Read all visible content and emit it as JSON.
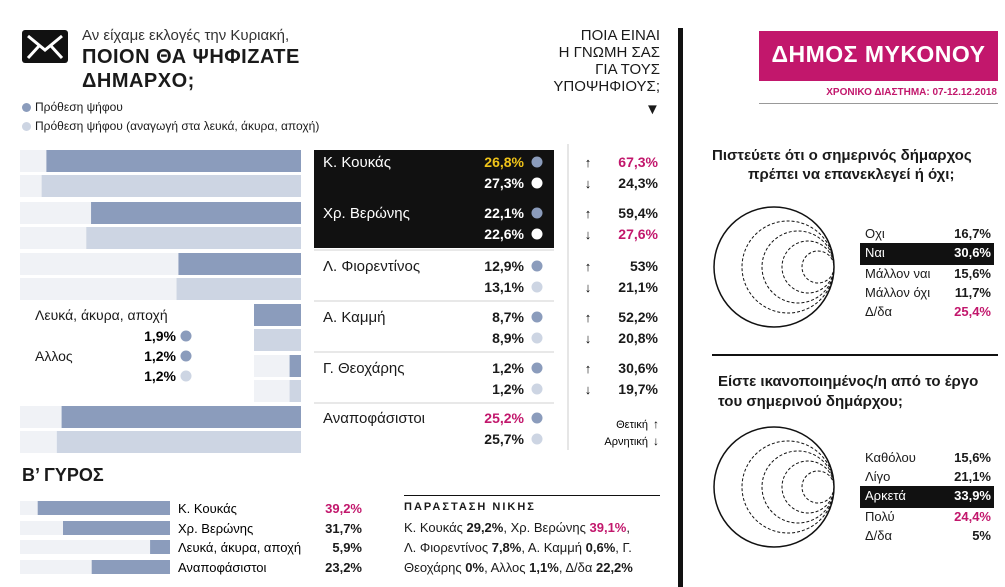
{
  "header": {
    "subtitle": "Αν είχαμε εκλογές την Κυριακή,",
    "question_line1": "ΠΟΙΟΝ ΘΑ ΨΗΦΙΖΑΤΕ",
    "question_line2": "ΔΗΜΑΡΧΟ;",
    "legend1": "Πρόθεση ψήφου",
    "legend2": "Πρόθεση ψήφου (αναγωγή στα λευκά, άκυρα, αποχή)",
    "opinion_line1": "ΠΟΙΑ ΕΙΝΑΙ",
    "opinion_line2": "Η ΓΝΩΜΗ ΣΑΣ",
    "opinion_line3": "ΓΙΑ ΤΟΥΣ",
    "opinion_line4": "ΥΠΟΨΗΦΙΟΥΣ;",
    "down_marker": "▼"
  },
  "municipality": {
    "title": "ΔΗΜΟΣ ΜΥΚΟΝΟΥ",
    "period": "ΧΡΟΝΙΚΟ ΔΙΑΣΤΗΜΑ: 07-12.12.2018"
  },
  "colors": {
    "bar_intention": "#8b9cbc",
    "bar_reduced": "#cdd5e3",
    "accent": "#c2176c",
    "highlight": "#f0c419",
    "dark": "#111111"
  },
  "chart_data": [
    {
      "type": "bar",
      "title": "ΠΟΙΟΝ ΘΑ ΨΗΦΙΖΑΤΕ ΔΗΜΑΡΧΟ;",
      "categories": [
        "Κ. Κουκάς",
        "Χρ. Βερώνης",
        "Λ. Φιορεντίνος",
        "Α. Καμμή",
        "Γ. Θεοχάρης",
        "Λευκά, άκυρα, αποχή",
        "Αλλος",
        "Αναποφάσιστοι"
      ],
      "series": [
        {
          "name": "Πρόθεση ψήφου",
          "values": [
            26.8,
            22.1,
            12.9,
            8.7,
            1.2,
            1.9,
            1.2,
            25.2
          ],
          "labels": [
            "26,8%",
            "22,1%",
            "12,9%",
            "8,7%",
            "1,2%",
            "1,9%",
            "1,2%",
            "25,2%"
          ]
        },
        {
          "name": "Πρόθεση ψήφου (αναγωγή στα λευκά, άκυρα, αποχή)",
          "values": [
            27.3,
            22.6,
            13.1,
            8.9,
            1.2,
            null,
            1.2,
            25.7
          ],
          "labels": [
            "27,3%",
            "22,6%",
            "13,1%",
            "8,9%",
            "1,2%",
            "",
            "1,2%",
            "25,7%"
          ]
        }
      ]
    },
    {
      "type": "table",
      "title": "ΠΟΙΑ ΕΙΝΑΙ Η ΓΝΩΜΗ ΣΑΣ ΓΙΑ ΤΟΥΣ ΥΠΟΨΗΦΙΟΥΣ;",
      "categories": [
        "Κ. Κουκάς",
        "Χρ. Βερώνης",
        "Λ. Φιορεντίνος",
        "Α. Καμμή",
        "Γ. Θεοχάρης"
      ],
      "series": [
        {
          "name": "Θετική",
          "values": [
            67.3,
            59.4,
            53,
            52.2,
            30.6
          ],
          "labels": [
            "67,3%",
            "59,4%",
            "53%",
            "52,2%",
            "30,6%"
          ]
        },
        {
          "name": "Αρνητική",
          "values": [
            24.3,
            27.6,
            21.1,
            20.8,
            19.7
          ],
          "labels": [
            "24,3%",
            "27,6%",
            "21,1%",
            "20,8%",
            "19,7%"
          ]
        }
      ],
      "legend_positive": "Θετική",
      "legend_negative": "Αρνητική"
    },
    {
      "type": "bar",
      "title": "Β’ ΓΥΡΟΣ",
      "categories": [
        "Κ. Κουκάς",
        "Χρ. Βερώνης",
        "Λευκά, άκυρα, αποχή",
        "Αναποφάσιστοι"
      ],
      "values": [
        39.2,
        31.7,
        5.9,
        23.2
      ],
      "labels": [
        "39,2%",
        "31,7%",
        "5,9%",
        "23,2%"
      ]
    },
    {
      "type": "pie",
      "title": "Πιστεύετε ότι ο σημερινός δήμαρχος πρέπει να επανεκλεγεί ή όχι;",
      "title_line1": "Πιστεύετε ότι ο σημερινός δήμαρχος",
      "title_line2": "πρέπει να επανεκλεγεί ή όχι;",
      "categories": [
        "Οχι",
        "Ναι",
        "Μάλλον ναι",
        "Μάλλον όχι",
        "Δ/δα"
      ],
      "values": [
        16.7,
        30.6,
        15.6,
        11.7,
        25.4
      ],
      "labels": [
        "16,7%",
        "30,6%",
        "15,6%",
        "11,7%",
        "25,4%"
      ]
    },
    {
      "type": "pie",
      "title": "Είστε ικανοποιημένος/η από το έργο του σημερινού δημάρχου;",
      "title_line1": "Είστε ικανοποιημένος/η από το έργο",
      "title_line2": "του σημερινού δημάρχου;",
      "categories": [
        "Καθόλου",
        "Λίγο",
        "Αρκετά",
        "Πολύ",
        "Δ/δα"
      ],
      "values": [
        15.6,
        21.1,
        33.9,
        24.4,
        5
      ],
      "labels": [
        "15,6%",
        "21,1%",
        "33,9%",
        "24,4%",
        "5%"
      ]
    }
  ],
  "victory": {
    "title": "ΠΑΡΑΣΤΑΣΗ ΝΙΚΗΣ",
    "line1_a": "Κ. Κουκάς ",
    "line1_b": "29,2%",
    "line1_c": ", Χρ. Βερώνης ",
    "line1_d": "39,1%",
    "line1_e": ",",
    "line2_a": "Λ. Φιορεντίνος ",
    "line2_b": "7,8%",
    "line2_c": ", Α. Καμμή ",
    "line2_d": "0,6%",
    "line2_e": ", Γ.",
    "line3_a": "Θεοχάρης ",
    "line3_b": "0%",
    "line3_c": ", Αλλος ",
    "line3_d": "1,1%",
    "line3_e": ", Δ/δα ",
    "line3_f": "22,2%"
  }
}
